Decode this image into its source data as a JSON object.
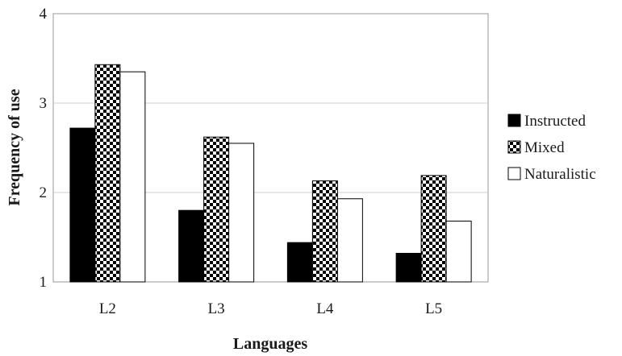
{
  "chart_data": {
    "type": "bar",
    "categories": [
      "L2",
      "L3",
      "L4",
      "L5"
    ],
    "series": [
      {
        "name": "Instructed",
        "values": [
          2.72,
          1.8,
          1.44,
          1.32
        ],
        "fill": "solid",
        "color": "#000000"
      },
      {
        "name": "Mixed",
        "values": [
          3.43,
          2.62,
          2.13,
          2.19
        ],
        "fill": "checker",
        "color": "#000000"
      },
      {
        "name": "Naturalistic",
        "values": [
          3.35,
          2.55,
          1.93,
          1.68
        ],
        "fill": "hollow",
        "color": "#ffffff"
      }
    ],
    "xlabel": "Languages",
    "ylabel": "Frequency of use",
    "ylim": [
      1,
      4
    ],
    "yticks": [
      "1",
      "2",
      "3",
      "4"
    ],
    "grid": true,
    "legend_position": "right"
  }
}
